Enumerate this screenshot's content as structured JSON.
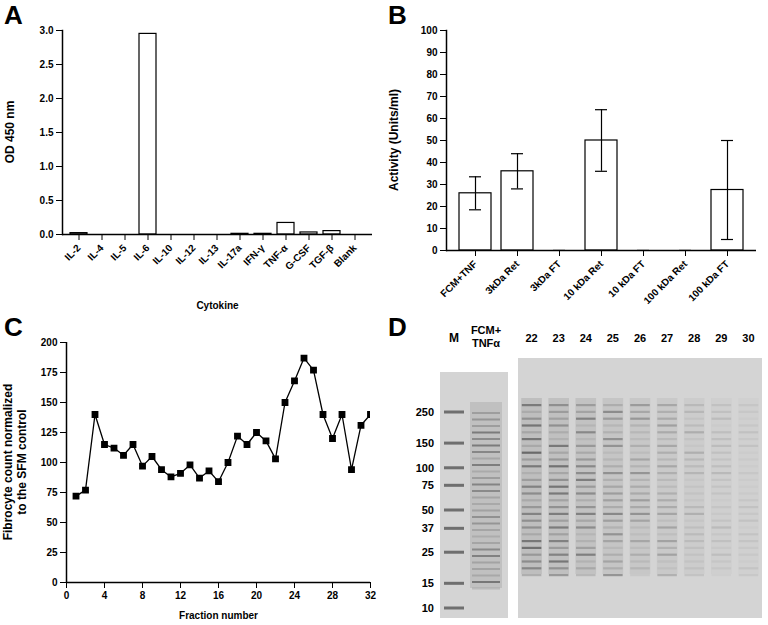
{
  "chart_data": [
    {
      "panel": "A",
      "type": "bar",
      "categories": [
        "IL-2",
        "IL-4",
        "IL-5",
        "IL-6",
        "IL-10",
        "IL-12",
        "IL-13",
        "IL-17a",
        "IFN-γ",
        "TNF-α",
        "G-CSF",
        "TGF-β",
        "Blank"
      ],
      "values": [
        0.02,
        0,
        0,
        2.95,
        0,
        0,
        0,
        0.01,
        0.01,
        0.17,
        0.03,
        0.05,
        0
      ],
      "color": "#ffffff",
      "xlabel": "Cytokine",
      "ylabel": "OD 450 nm",
      "ylim": [
        0,
        3
      ],
      "yticks": [
        {
          "value": 0,
          "label": "0.0"
        },
        {
          "value": 0.5,
          "label": "0.5"
        },
        {
          "value": 1,
          "label": "1.0"
        },
        {
          "value": 1.5,
          "label": "1.5"
        },
        {
          "value": 2,
          "label": "2.0"
        },
        {
          "value": 2.5,
          "label": "2.5"
        },
        {
          "value": 3,
          "label": "3.0"
        }
      ]
    },
    {
      "panel": "B",
      "type": "bar",
      "categories": [
        "FCM+TNF",
        "3kDa Ret",
        "3kDa FT",
        "10 kDa Ret",
        "10 kDa FT",
        "100 kDa Ret",
        "100 kDa FT"
      ],
      "values": [
        26,
        36,
        0,
        50,
        0,
        0,
        27.5
      ],
      "errors": [
        7.5,
        8,
        0,
        14,
        0,
        0,
        22.5
      ],
      "color": "#ffffff",
      "ylabel": "Activity (Units/ml)",
      "ylim": [
        0,
        100
      ],
      "yticks": [
        0,
        10,
        20,
        30,
        40,
        50,
        60,
        70,
        80,
        90,
        100
      ]
    },
    {
      "panel": "C",
      "type": "line",
      "x": [
        1,
        2,
        3,
        4,
        5,
        6,
        7,
        8,
        9,
        10,
        11,
        12,
        13,
        14,
        15,
        16,
        17,
        18,
        19,
        20,
        21,
        22,
        23,
        24,
        25,
        26,
        27,
        28,
        29,
        30,
        31,
        32
      ],
      "values": [
        72,
        77,
        140,
        115,
        112,
        106,
        115,
        97,
        105,
        94,
        88,
        91,
        98,
        87,
        93,
        84,
        100,
        122,
        115,
        125,
        118,
        103,
        150,
        168,
        187,
        177,
        140,
        120,
        140,
        94,
        131,
        140
      ],
      "color": "#000000",
      "marker": "square",
      "xlabel": "Fraction number",
      "ylabel": "Fibrocyte count normalized\nto the SFM control",
      "xlim": [
        0,
        32
      ],
      "xticks": [
        0,
        4,
        8,
        12,
        16,
        20,
        24,
        28,
        32
      ],
      "ylim": [
        0,
        200
      ],
      "yticks": [
        0,
        25,
        50,
        75,
        100,
        125,
        150,
        175,
        200
      ]
    },
    {
      "panel": "D",
      "type": "gel",
      "marker_lane": "M",
      "sample_lane": "FCM+\nTNFα",
      "fraction_lanes": [
        22,
        23,
        24,
        25,
        26,
        27,
        28,
        29,
        30
      ],
      "marker_sizes": [
        250,
        150,
        100,
        75,
        50,
        37,
        25,
        15,
        10
      ]
    }
  ]
}
